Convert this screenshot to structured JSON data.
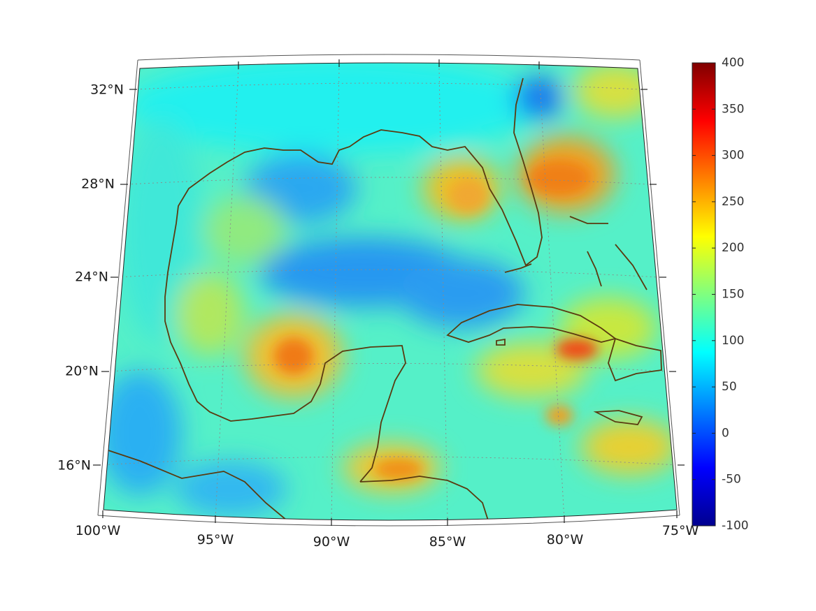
{
  "map": {
    "projection": "conic",
    "lon_range": [
      -100,
      -75
    ],
    "lat_range": [
      14,
      33
    ],
    "grid": true,
    "lat_labels": [
      "32°N",
      "28°N",
      "24°N",
      "20°N",
      "16°N"
    ],
    "lon_labels": [
      "100°W",
      "95°W",
      "90°W",
      "85°W",
      "80°W",
      "75°W"
    ],
    "coastline_color": "#5a3a10",
    "field_colormap": "jet"
  },
  "colorbar": {
    "ticks": [
      "400",
      "350",
      "300",
      "250",
      "200",
      "150",
      "100",
      "50",
      "0",
      "-50",
      "-100"
    ],
    "min": -100,
    "max": 400,
    "colormap": [
      "#00008f",
      "#0000ff",
      "#00ffff",
      "#ffff00",
      "#ff0000",
      "#800000"
    ]
  }
}
